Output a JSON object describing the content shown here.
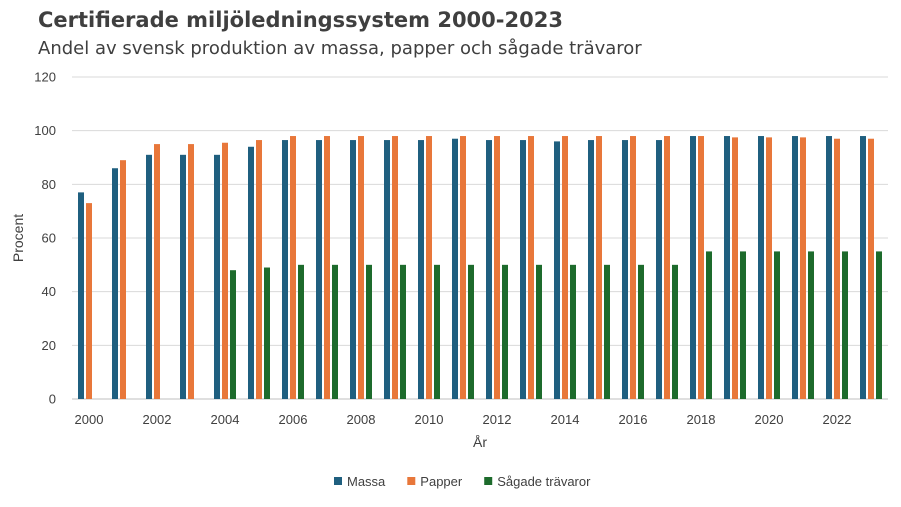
{
  "chart_data": {
    "type": "bar",
    "title": "Certifierade miljöledningssystem 2000-2023",
    "subtitle": "Andel av svensk produktion av massa, papper och sågade trävaror",
    "xlabel": "År",
    "ylabel": "Procent",
    "ylim": [
      0,
      120
    ],
    "yticks": [
      0,
      20,
      40,
      60,
      80,
      100,
      120
    ],
    "grid": true,
    "legend_position": "bottom",
    "categories": [
      2000,
      2001,
      2002,
      2003,
      2004,
      2005,
      2006,
      2007,
      2008,
      2009,
      2010,
      2011,
      2012,
      2013,
      2014,
      2015,
      2016,
      2017,
      2018,
      2019,
      2020,
      2021,
      2022,
      2023
    ],
    "x_tick_labels": [
      "2000",
      "2002",
      "2004",
      "2006",
      "2008",
      "2010",
      "2012",
      "2014",
      "2016",
      "2018",
      "2020",
      "2022"
    ],
    "series": [
      {
        "name": "Massa",
        "color": "#1f5f7f",
        "values": [
          77,
          86,
          91,
          91,
          91,
          94,
          96.5,
          96.5,
          96.5,
          96.5,
          96.5,
          97,
          96.5,
          96.5,
          96,
          96.5,
          96.5,
          96.5,
          98,
          98,
          98,
          98,
          98,
          98
        ]
      },
      {
        "name": "Papper",
        "color": "#e8773a",
        "values": [
          73,
          89,
          95,
          95,
          95.5,
          96.5,
          98,
          98,
          98,
          98,
          98,
          98,
          98,
          98,
          98,
          98,
          98,
          98,
          98,
          97.5,
          97.5,
          97.5,
          97,
          97
        ]
      },
      {
        "name": "Sågade trävaror",
        "color": "#1d6b2c",
        "values": [
          null,
          null,
          null,
          null,
          48,
          49,
          50,
          50,
          50,
          50,
          50,
          50,
          50,
          50,
          50,
          50,
          50,
          50,
          55,
          55,
          55,
          55,
          55,
          55
        ]
      }
    ]
  }
}
